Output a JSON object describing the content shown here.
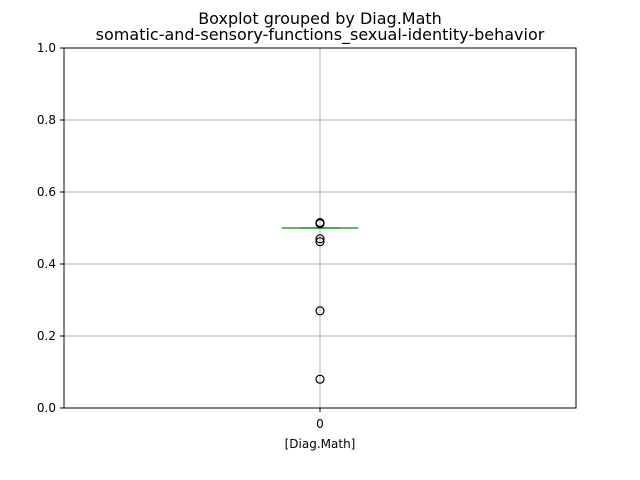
{
  "chart_data": {
    "type": "box",
    "title": "Boxplot grouped by Diag.Math",
    "subtitle": "somatic-and-sensory-functions_sexual-identity-behavior",
    "xlabel": "[Diag.Math]",
    "ylabel": "",
    "categories": [
      "0"
    ],
    "ylim": [
      0,
      1
    ],
    "yticks": [
      "0.0",
      "0.2",
      "0.4",
      "0.6",
      "0.8",
      "1.0"
    ],
    "grid": true,
    "boxes": [
      {
        "category": "0",
        "q1": 0.5,
        "median": 0.5,
        "q3": 0.5,
        "whisker_low": 0.5,
        "whisker_high": 0.5,
        "outliers": [
          0.515,
          0.512,
          0.47,
          0.462,
          0.27,
          0.08
        ]
      }
    ],
    "colors": {
      "box": "#1f77b4",
      "median": "#2ca02c",
      "flier": "#000000",
      "grid": "#b0b0b0"
    }
  }
}
